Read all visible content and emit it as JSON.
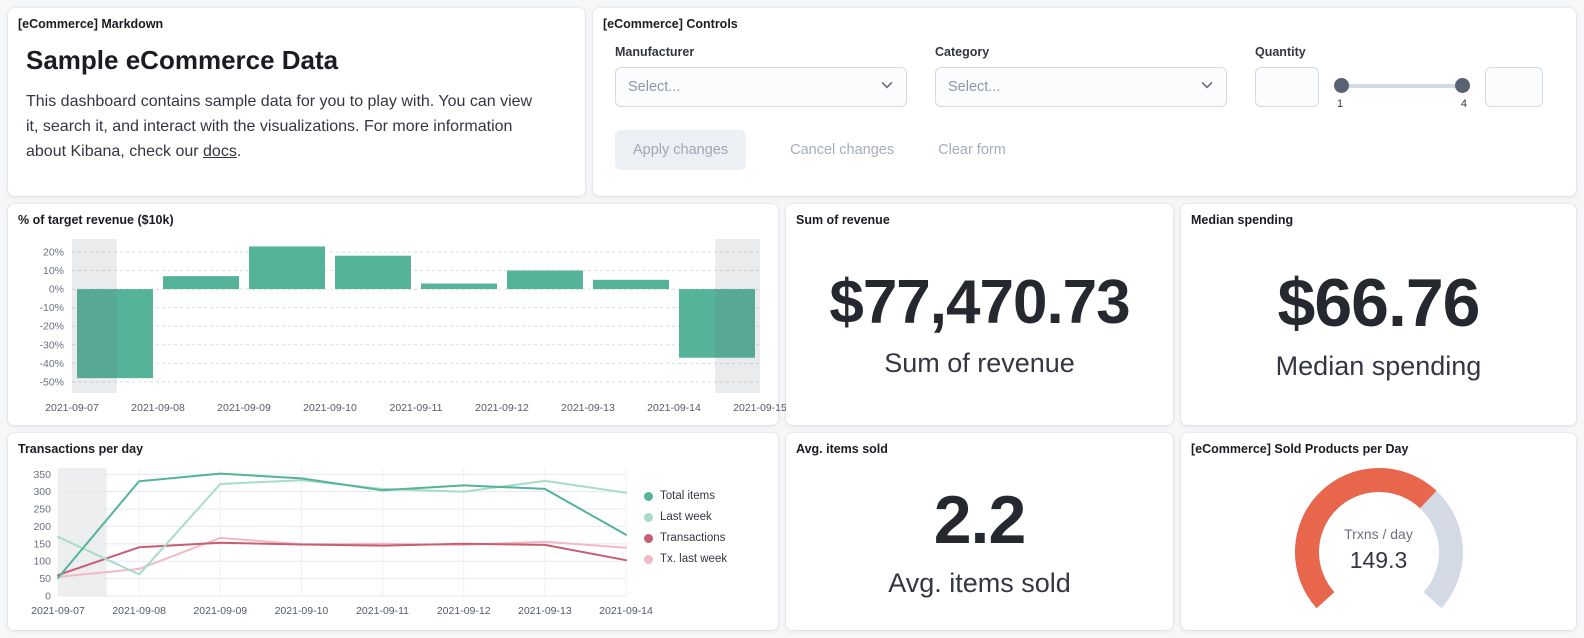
{
  "markdown": {
    "panel_title": "[eCommerce] Markdown",
    "heading": "Sample eCommerce Data",
    "body": "This dashboard contains sample data for you to play with. You can view it, search it, and interact with the visualizations. For more information about Kibana, check our ",
    "link_text": "docs",
    "body_suffix": "."
  },
  "controls": {
    "panel_title": "[eCommerce] Controls",
    "manufacturer_label": "Manufacturer",
    "manufacturer_placeholder": "Select...",
    "category_label": "Category",
    "category_placeholder": "Select...",
    "quantity_label": "Quantity",
    "quantity_min": "1",
    "quantity_max": "4",
    "apply_label": "Apply changes",
    "cancel_label": "Cancel changes",
    "clear_label": "Clear form"
  },
  "metrics": {
    "sum_revenue": {
      "panel_title": "Sum of revenue",
      "value": "$77,470.73",
      "label": "Sum of revenue"
    },
    "median_spending": {
      "panel_title": "Median spending",
      "value": "$66.76",
      "label": "Median spending"
    },
    "avg_items_sold": {
      "panel_title": "Avg. items sold",
      "value": "2.2",
      "label": "Avg. items sold"
    }
  },
  "chart_data": [
    {
      "id": "target-revenue",
      "type": "bar",
      "title": "% of target revenue ($10k)",
      "categories": [
        "2021-09-07",
        "2021-09-08",
        "2021-09-09",
        "2021-09-10",
        "2021-09-11",
        "2021-09-12",
        "2021-09-13",
        "2021-09-14",
        "2021-09-15"
      ],
      "values": [
        -48,
        7,
        23,
        18,
        3,
        10,
        5,
        -37
      ],
      "ylim": [
        -56,
        27
      ],
      "yticks": [
        20,
        10,
        0,
        -10,
        -20,
        -30,
        -40,
        -50
      ],
      "ytick_suffix": "%",
      "bar_color": "#54B399",
      "partial_band_color": "rgba(105,112,125,0.14)",
      "grid": true,
      "legend_position": "none"
    },
    {
      "id": "transactions-per-day",
      "type": "line",
      "title": "Transactions per day",
      "x": [
        "2021-09-07",
        "2021-09-08",
        "2021-09-09",
        "2021-09-10",
        "2021-09-11",
        "2021-09-12",
        "2021-09-13",
        "2021-09-14"
      ],
      "series": [
        {
          "name": "Total items",
          "color": "#54B399",
          "values": [
            52,
            330,
            352,
            338,
            304,
            318,
            308,
            176
          ]
        },
        {
          "name": "Last week",
          "color": "#A9DCC8",
          "values": [
            170,
            62,
            322,
            333,
            308,
            300,
            331,
            297
          ]
        },
        {
          "name": "Transactions",
          "color": "#C75E74",
          "values": [
            60,
            140,
            153,
            148,
            145,
            150,
            147,
            103
          ]
        },
        {
          "name": "Tx. last week",
          "color": "#F1BAC6",
          "values": [
            55,
            78,
            167,
            149,
            150,
            147,
            156,
            139
          ]
        }
      ],
      "ylim": [
        0,
        368
      ],
      "yticks": [
        0,
        50,
        100,
        150,
        200,
        250,
        300,
        350
      ],
      "grid": true,
      "legend_position": "right",
      "partial_band_color": "rgba(105,112,125,0.12)"
    },
    {
      "id": "sold-products-per-day",
      "type": "gauge",
      "title": "[eCommerce] Sold Products per Day",
      "label": "Trxns / day",
      "value": 149.3,
      "display_value": "149.3",
      "min": 0,
      "max": 225,
      "sweep_deg": 264,
      "arc_color": "#E7664C",
      "track_color": "#D3DAE6"
    }
  ]
}
